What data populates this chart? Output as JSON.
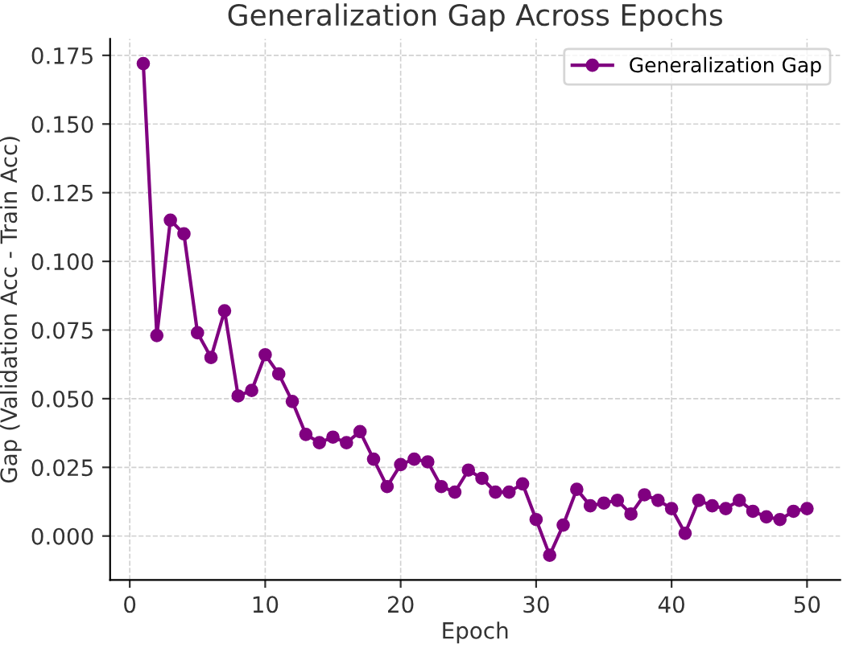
{
  "chart_data": {
    "type": "line",
    "title": "Generalization Gap Across Epochs",
    "xlabel": "Epoch",
    "ylabel": "Gap (Validation Acc - Train Acc)",
    "x": [
      1,
      2,
      3,
      4,
      5,
      6,
      7,
      8,
      9,
      10,
      11,
      12,
      13,
      14,
      15,
      16,
      17,
      18,
      19,
      20,
      21,
      22,
      23,
      24,
      25,
      26,
      27,
      28,
      29,
      30,
      31,
      32,
      33,
      34,
      35,
      36,
      37,
      38,
      39,
      40,
      41,
      42,
      43,
      44,
      45,
      46,
      47,
      48,
      49,
      50
    ],
    "series": [
      {
        "name": "Generalization Gap",
        "color": "#800080",
        "values": [
          0.172,
          0.073,
          0.115,
          0.11,
          0.074,
          0.065,
          0.082,
          0.051,
          0.053,
          0.066,
          0.059,
          0.049,
          0.037,
          0.034,
          0.036,
          0.034,
          0.038,
          0.028,
          0.018,
          0.026,
          0.028,
          0.027,
          0.018,
          0.016,
          0.024,
          0.021,
          0.016,
          0.016,
          0.019,
          0.006,
          -0.007,
          0.004,
          0.017,
          0.011,
          0.012,
          0.013,
          0.008,
          0.015,
          0.013,
          0.01,
          0.001,
          0.013,
          0.011,
          0.01,
          0.013,
          0.009,
          0.007,
          0.006,
          0.009,
          0.01
        ]
      }
    ],
    "xlim": [
      -1.45,
      52.45
    ],
    "ylim": [
      -0.016,
      0.181
    ],
    "xticks": [
      0,
      10,
      20,
      30,
      40,
      50
    ],
    "yticks": [
      {
        "value": 0,
        "label": "0.000"
      },
      {
        "value": 0.025,
        "label": "0.025"
      },
      {
        "value": 0.05,
        "label": "0.050"
      },
      {
        "value": 0.075,
        "label": "0.075"
      },
      {
        "value": 0.1,
        "label": "0.100"
      },
      {
        "value": 0.125,
        "label": "0.125"
      },
      {
        "value": 0.15,
        "label": "0.150"
      },
      {
        "value": 0.175,
        "label": "0.175"
      }
    ],
    "grid": true,
    "legend": "top right",
    "marker": "circle",
    "line_style": "solid"
  }
}
